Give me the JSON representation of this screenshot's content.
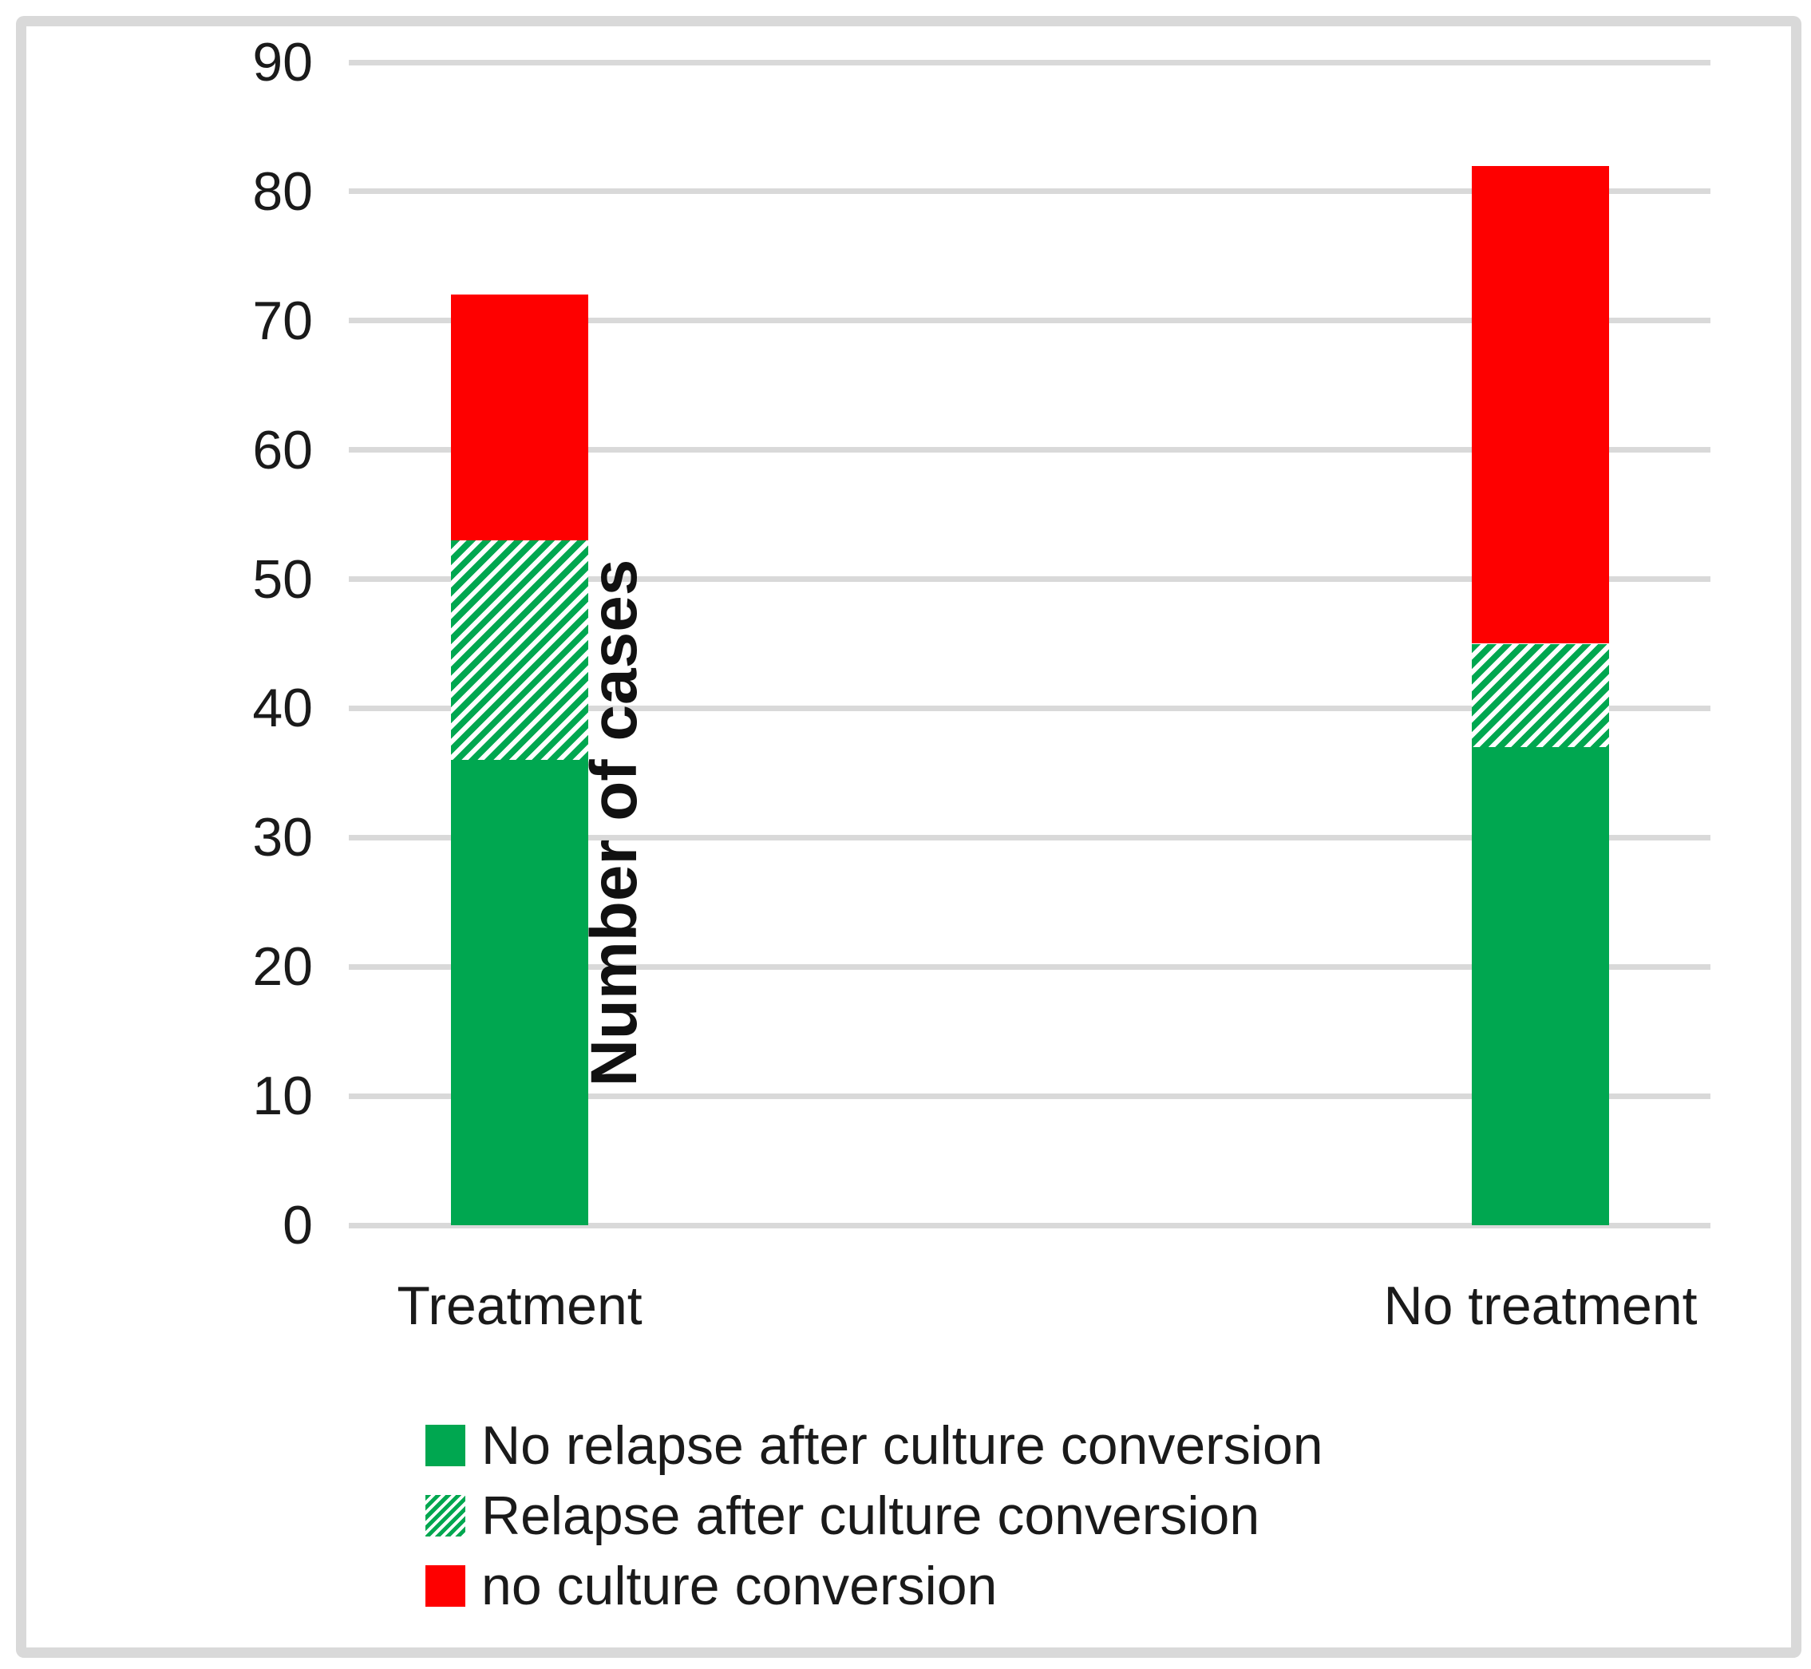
{
  "chart_data": {
    "type": "bar",
    "stacked": true,
    "title": "",
    "xlabel": "",
    "ylabel": "Number of cases",
    "ylim": [
      0,
      90
    ],
    "yticks": [
      0,
      10,
      20,
      30,
      40,
      50,
      60,
      70,
      80,
      90
    ],
    "grid": true,
    "legend_position": "bottom-left",
    "categories": [
      "Treatment",
      "No treatment"
    ],
    "series": [
      {
        "name": "No relapse after culture conversion",
        "values": [
          36,
          37
        ],
        "fill": "solid",
        "color": "#00a750"
      },
      {
        "name": "Relapse after culture conversion",
        "values": [
          17,
          8
        ],
        "fill": "diagonal-hatch",
        "color": "#00a750"
      },
      {
        "name": "no culture conversion",
        "values": [
          19,
          37
        ],
        "fill": "solid",
        "color": "#fe0000"
      }
    ],
    "stack_totals": [
      72,
      82
    ]
  },
  "colors": {
    "gridline": "#d9d9d9",
    "frame": "#d9d9d9",
    "text": "#1a1a1a",
    "hatch_background": "#ffffff",
    "background": "#ffffff"
  }
}
